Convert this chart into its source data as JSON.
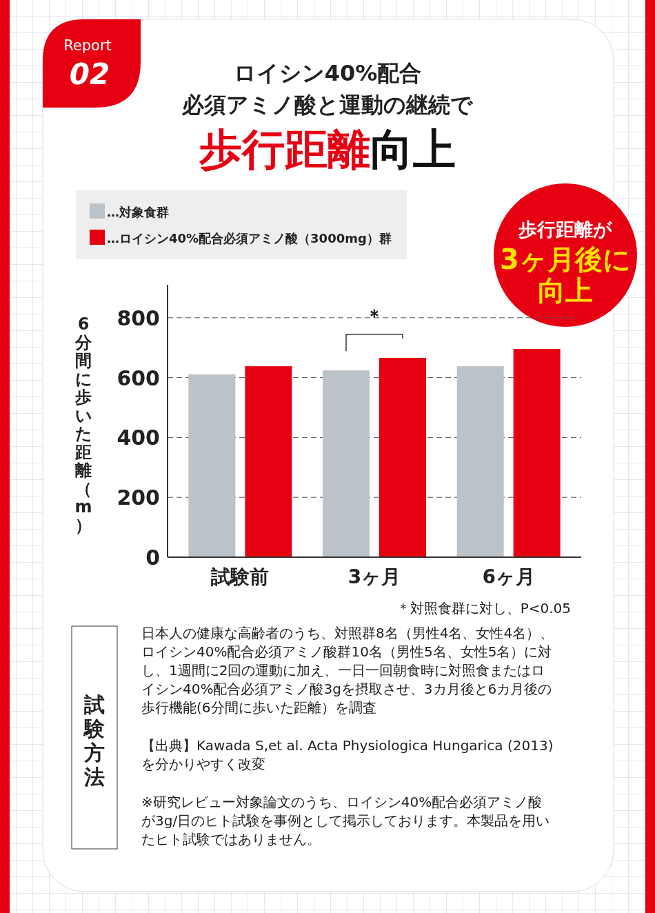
{
  "chart_data": {
    "type": "bar",
    "title": "ロイシン40%配合",
    "subtitle": "必須アミノ酸と運動の継続で",
    "ylabel": "6分間に歩いた距離（m）",
    "categories": [
      "試験前",
      "3ヶ月",
      "6ヶ月"
    ],
    "series": [
      {
        "name": "…対象食群",
        "color": "#bcc3c8",
        "values": [
          611,
          624,
          638
        ]
      },
      {
        "name": "…ロイシン40%配合必須アミノ酸（3000mg）群",
        "color": "#e60012",
        "values": [
          638,
          666,
          696
        ]
      }
    ],
    "ylim": [
      0,
      910
    ],
    "yticks": [
      0,
      200,
      400,
      600,
      800
    ],
    "grid": "y",
    "legend": "top left",
    "annotations": [
      "Report",
      "02",
      "歩行距離が",
      "3ヶ月後に",
      "向上",
      "＊",
      "＊対照食群に対し、P<0.05",
      "試験方法",
      "日本人の健康な高齢者のうち、対照群8名（男性4名、女性4名）、ロイシン40%配合必須アミノ酸群10名（男性5名、女性5名）に対し、1週間に2回の運動に加え、一日一回朝食時に対照食またはロイシン40%配合必須アミノ酸3gを摂取させ、3カ月後と6カ月後の歩行機能(6分間に歩いた距離）を調査",
      "【出典】Kawada S,et al. Acta Physiologica Hungarica (2013)を分かりやすく改変",
      "※研究レビュー対象論文のうち、ロイシン40%配合必須アミノ酸が3g/日のヒト試験を事例として掲示しております。本製品を用いたヒト試験ではありません。",
      "歩行距離向上"
    ]
  }
}
